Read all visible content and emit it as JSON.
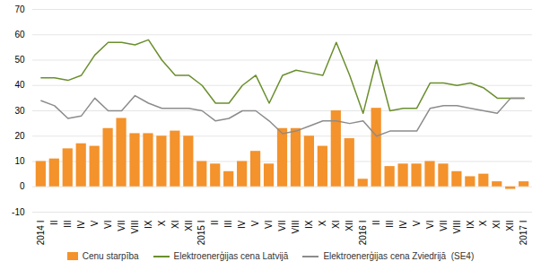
{
  "chart_data": {
    "type": "bar",
    "categories": [
      "2014 I",
      "II",
      "III",
      "IV",
      "V",
      "VI",
      "VII",
      "VIII",
      "IX",
      "X",
      "XI",
      "XII",
      "2015 I",
      "II",
      "III",
      "IV",
      "V",
      "VI",
      "VII",
      "VIII",
      "IX",
      "X",
      "XI",
      "XII",
      "2016 I",
      "II",
      "III",
      "IV",
      "V",
      "VI",
      "VII",
      "VIII",
      "IX",
      "X",
      "XI",
      "XII",
      "2017 I"
    ],
    "series": [
      {
        "name": "Cenu starpība",
        "type": "bar",
        "color": "#f4922c",
        "values": [
          10,
          11,
          15,
          17,
          16,
          23,
          27,
          21,
          21,
          20,
          22,
          20,
          10,
          9,
          6,
          10,
          14,
          9,
          23,
          23,
          20,
          16,
          30,
          19,
          3,
          31,
          8,
          9,
          9,
          10,
          9,
          6,
          4,
          5,
          2,
          -1,
          2
        ]
      },
      {
        "name": "Elektroenerģijas cena Latvijā",
        "type": "line",
        "color": "#6a8f2e",
        "values": [
          43,
          43,
          42,
          44,
          52,
          57,
          57,
          56,
          58,
          50,
          44,
          44,
          40,
          33,
          33,
          40,
          44,
          33,
          44,
          46,
          45,
          44,
          57,
          44,
          29,
          50,
          30,
          31,
          31,
          41,
          41,
          40,
          41,
          39,
          35,
          35,
          35
        ]
      },
      {
        "name": "Elektroenerģijas cena Zviedrijā  (SE4)",
        "type": "line",
        "color": "#8c8c8c",
        "values": [
          34,
          32,
          27,
          28,
          35,
          30,
          30,
          36,
          33,
          31,
          31,
          31,
          30,
          26,
          27,
          30,
          30,
          26,
          21,
          22,
          24,
          26,
          26,
          25,
          26,
          20,
          22,
          22,
          22,
          31,
          32,
          32,
          31,
          30,
          29,
          35,
          35
        ]
      }
    ],
    "ylim": [
      -10,
      70
    ],
    "yticks": [
      -10,
      0,
      10,
      20,
      30,
      40,
      50,
      60,
      70
    ],
    "grid": true,
    "legend": "bottom"
  }
}
